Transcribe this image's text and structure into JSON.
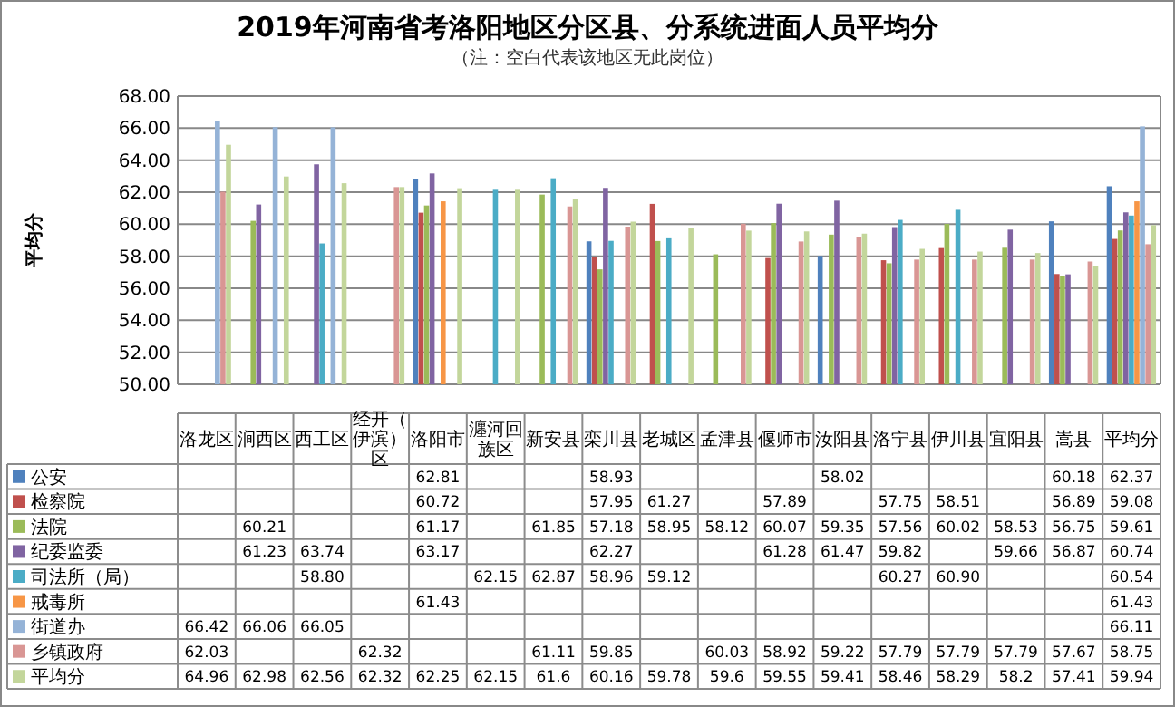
{
  "chart_data": {
    "type": "bar",
    "title": "2019年河南省考洛阳地区分区县、分系统进面人员平均分",
    "subtitle": "（注：空白代表该地区无此岗位）",
    "ylabel": "平均分",
    "categories": [
      "洛龙区",
      "涧西区",
      "西工区",
      "经开（伊滨）区",
      "洛阳市",
      "瀍河回族区",
      "新安县",
      "栾川县",
      "老城区",
      "孟津县",
      "偃师市",
      "汝阳县",
      "洛宁县",
      "伊川县",
      "宜阳县",
      "嵩县",
      "平均分"
    ],
    "series": [
      {
        "name": "公安",
        "color": "#4f81bd",
        "values": [
          null,
          null,
          null,
          null,
          62.81,
          null,
          null,
          58.93,
          null,
          null,
          null,
          58.02,
          null,
          null,
          null,
          60.18,
          62.37
        ]
      },
      {
        "name": "检察院",
        "color": "#c0504d",
        "values": [
          null,
          null,
          null,
          null,
          60.72,
          null,
          null,
          57.95,
          61.27,
          null,
          57.89,
          null,
          57.75,
          58.51,
          null,
          56.89,
          59.08
        ]
      },
      {
        "name": "法院",
        "color": "#9bbb59",
        "values": [
          null,
          60.21,
          null,
          null,
          61.17,
          null,
          61.85,
          57.18,
          58.95,
          58.12,
          60.07,
          59.35,
          57.56,
          60.02,
          58.53,
          56.75,
          59.61
        ]
      },
      {
        "name": "纪委监委",
        "color": "#8064a2",
        "values": [
          null,
          61.23,
          63.74,
          null,
          63.17,
          null,
          null,
          62.27,
          null,
          null,
          61.28,
          61.47,
          59.82,
          null,
          59.66,
          56.87,
          60.74
        ]
      },
      {
        "name": "司法所（局）",
        "color": "#4bacc6",
        "values": [
          null,
          null,
          58.8,
          null,
          null,
          62.15,
          62.87,
          58.96,
          59.12,
          null,
          null,
          null,
          60.27,
          60.9,
          null,
          null,
          60.54
        ],
        "value_labels": [
          null,
          null,
          "58.80",
          null,
          null,
          "62.15",
          "62.87",
          "58.96",
          "59.12",
          null,
          null,
          null,
          "60.27",
          "60.90",
          null,
          null,
          "60.54"
        ]
      },
      {
        "name": "戒毒所",
        "color": "#f79646",
        "values": [
          null,
          null,
          null,
          null,
          61.43,
          null,
          null,
          null,
          null,
          null,
          null,
          null,
          null,
          null,
          null,
          null,
          61.43
        ]
      },
      {
        "name": "街道办",
        "color": "#95b3d7",
        "values": [
          66.42,
          66.06,
          66.05,
          null,
          null,
          null,
          null,
          null,
          null,
          null,
          null,
          null,
          null,
          null,
          null,
          null,
          66.11
        ]
      },
      {
        "name": "乡镇政府",
        "color": "#d99694",
        "values": [
          62.03,
          null,
          null,
          62.32,
          null,
          null,
          61.11,
          59.85,
          null,
          60.03,
          58.92,
          59.22,
          57.79,
          57.79,
          57.79,
          57.67,
          58.75
        ]
      },
      {
        "name": "平均分",
        "color": "#c3d69b",
        "values": [
          64.96,
          62.98,
          62.56,
          62.32,
          62.25,
          62.15,
          61.6,
          60.16,
          59.78,
          59.6,
          59.55,
          59.41,
          58.46,
          58.29,
          58.2,
          57.41,
          59.94
        ]
      }
    ],
    "ylim": [
      50,
      68
    ],
    "yticks": [
      {
        "value": 50,
        "label": "50.00"
      },
      {
        "value": 52,
        "label": "52.00"
      },
      {
        "value": 54,
        "label": "54.00"
      },
      {
        "value": 56,
        "label": "56.00"
      },
      {
        "value": 58,
        "label": "58.00"
      },
      {
        "value": 60,
        "label": "60.00"
      },
      {
        "value": 62,
        "label": "62.00"
      },
      {
        "value": 64,
        "label": "64.00"
      },
      {
        "value": 66,
        "label": "66.00"
      },
      {
        "value": 68,
        "label": "68.00"
      }
    ],
    "grid": "y",
    "legend": "bottom left",
    "data_labels": true
  }
}
